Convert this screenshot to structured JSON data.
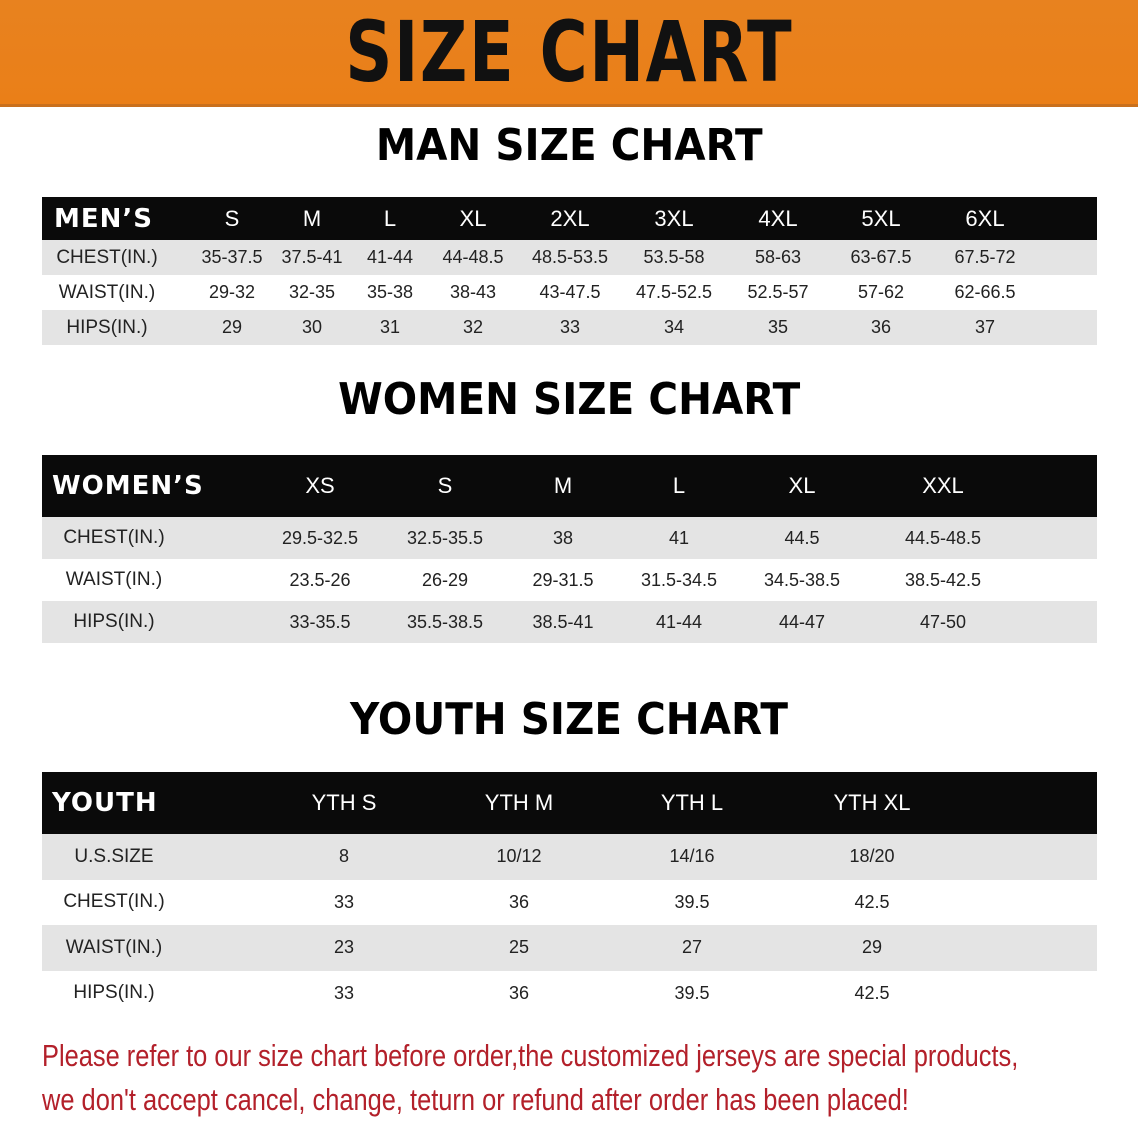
{
  "banner": {
    "title": "SIZE CHART",
    "color": "#ea7f18"
  },
  "men": {
    "title": "MAN SIZE CHART",
    "header": [
      "MEN’S",
      "S",
      "M",
      "L",
      "XL",
      "2XL",
      "3XL",
      "4XL",
      "5XL",
      "6XL"
    ],
    "rows": [
      [
        "CHEST(IN.)",
        "35-37.5",
        "37.5-41",
        "41-44",
        "44-48.5",
        "48.5-53.5",
        "53.5-58",
        "58-63",
        "63-67.5",
        "67.5-72"
      ],
      [
        "WAIST(IN.)",
        "29-32",
        "32-35",
        "35-38",
        "38-43",
        "43-47.5",
        "47.5-52.5",
        "52.5-57",
        "57-62",
        "62-66.5"
      ],
      [
        "HIPS(IN.)",
        "29",
        "30",
        "31",
        "32",
        "33",
        "34",
        "35",
        "36",
        "37"
      ]
    ]
  },
  "women": {
    "title": "WOMEN SIZE CHART",
    "header": [
      "WOMEN’S",
      "XS",
      "S",
      "M",
      "L",
      "XL",
      "XXL"
    ],
    "rows": [
      [
        "CHEST(IN.)",
        "29.5-32.5",
        "32.5-35.5",
        "38",
        "41",
        "44.5",
        "44.5-48.5"
      ],
      [
        "WAIST(IN.)",
        "23.5-26",
        "26-29",
        "29-31.5",
        "31.5-34.5",
        "34.5-38.5",
        "38.5-42.5"
      ],
      [
        "HIPS(IN.)",
        "33-35.5",
        "35.5-38.5",
        "38.5-41",
        "41-44",
        "44-47",
        "47-50"
      ]
    ]
  },
  "youth": {
    "title": "YOUTH SIZE CHART",
    "header": [
      "YOUTH",
      "YTH S",
      "YTH M",
      "YTH L",
      "YTH XL"
    ],
    "rows": [
      [
        "U.S.SIZE",
        "8",
        "10/12",
        "14/16",
        "18/20"
      ],
      [
        "CHEST(IN.)",
        "33",
        "36",
        "39.5",
        "42.5"
      ],
      [
        "WAIST(IN.)",
        "23",
        "25",
        "27",
        "29"
      ],
      [
        "HIPS(IN.)",
        "33",
        "36",
        "39.5",
        "42.5"
      ]
    ]
  },
  "notice": {
    "line1": "Please refer to our size chart before order,the customized jerseys are special products,",
    "line2": "we don't accept cancel, change, teturn or refund after order has been placed!",
    "color": "#b3202a"
  }
}
